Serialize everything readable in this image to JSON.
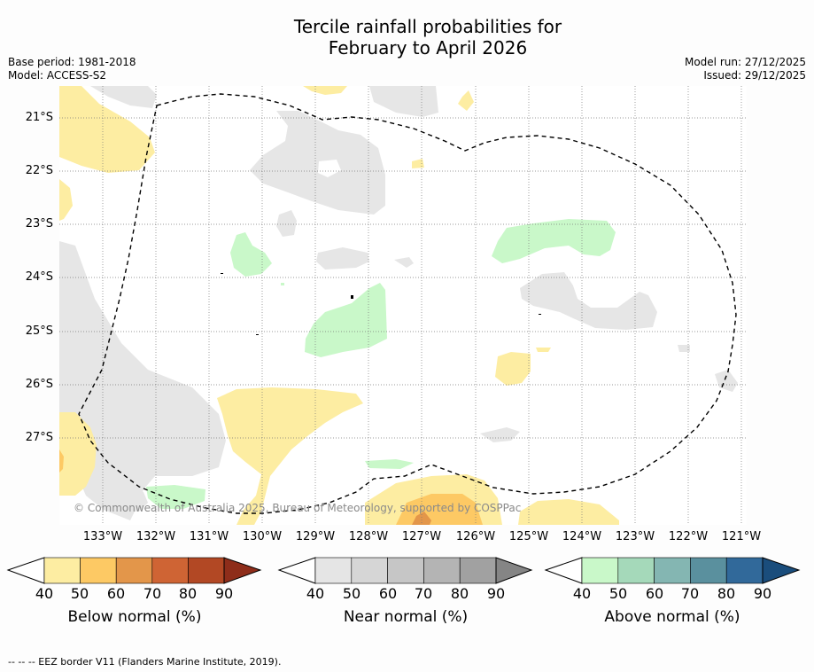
{
  "title_line1": "Tercile rainfall probabilities for",
  "title_line2": "February to April 2026",
  "base_period": "Base period: 1981-2018",
  "model": "Model: ACCESS-S2",
  "model_run": "Model run: 27/12/2025",
  "issued": "Issued: 29/12/2025",
  "lat_labels": [
    "21°S",
    "22°S",
    "23°S",
    "24°S",
    "25°S",
    "26°S",
    "27°S"
  ],
  "lon_labels": [
    "133°W",
    "132°W",
    "131°W",
    "130°W",
    "129°W",
    "128°W",
    "127°W",
    "126°W",
    "125°W",
    "124°W",
    "123°W",
    "122°W",
    "121°W"
  ],
  "copyright": "© Commonwealth of Australia 2025, Bureau of Meteorology, supported by COSPPac",
  "colorbars": [
    {
      "title": "Below normal (%)",
      "ticks": [
        "40",
        "50",
        "60",
        "70",
        "80",
        "90"
      ],
      "colors": [
        "#fdeda2",
        "#fdc964",
        "#e3964a",
        "#cf6434",
        "#b24824",
        "#8e2d1a"
      ]
    },
    {
      "title": "Near normal (%)",
      "ticks": [
        "40",
        "50",
        "60",
        "70",
        "80",
        "90"
      ],
      "colors": [
        "#e5e5e5",
        "#d6d6d6",
        "#c6c6c6",
        "#b4b4b4",
        "#a1a1a1",
        "#858585"
      ]
    },
    {
      "title": "Above normal (%)",
      "ticks": [
        "40",
        "50",
        "60",
        "70",
        "80",
        "90"
      ],
      "colors": [
        "#c9f8c9",
        "#a5d9ba",
        "#84b6b2",
        "#5a909e",
        "#31699a",
        "#1a4d7c"
      ]
    }
  ],
  "footer": "--  --  -- EEZ border V11 (Flanders Marine Institute, 2019).",
  "colors": {
    "below_40": "#fdeda2",
    "below_50": "#fdc964",
    "near_40": "#e6e6e6",
    "above_40": "#c9f8c9"
  }
}
